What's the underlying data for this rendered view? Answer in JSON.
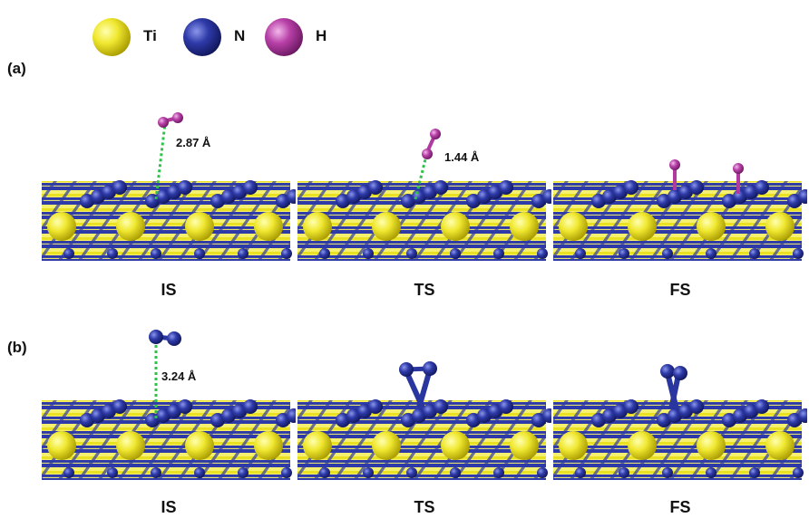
{
  "legend": {
    "items": [
      {
        "label": "Ti",
        "color": "#e8e020"
      },
      {
        "label": "N",
        "color": "#2a36a0"
      },
      {
        "label": "H",
        "color": "#b03aa0"
      }
    ]
  },
  "panels": [
    {
      "label": "(a)",
      "states": [
        {
          "label": "IS",
          "distance": "2.87 Å"
        },
        {
          "label": "TS",
          "distance": "1.44 Å"
        },
        {
          "label": "FS",
          "distance": ""
        }
      ]
    },
    {
      "label": "(b)",
      "states": [
        {
          "label": "IS",
          "distance": "3.24 Å"
        },
        {
          "label": "TS",
          "distance": ""
        },
        {
          "label": "FS",
          "distance": ""
        }
      ]
    }
  ],
  "colors": {
    "ti": "#e8e020",
    "ti_dark": "#b8a800",
    "n": "#2a36a0",
    "h": "#b03aa0",
    "bond_dist": "#2fc24a"
  }
}
